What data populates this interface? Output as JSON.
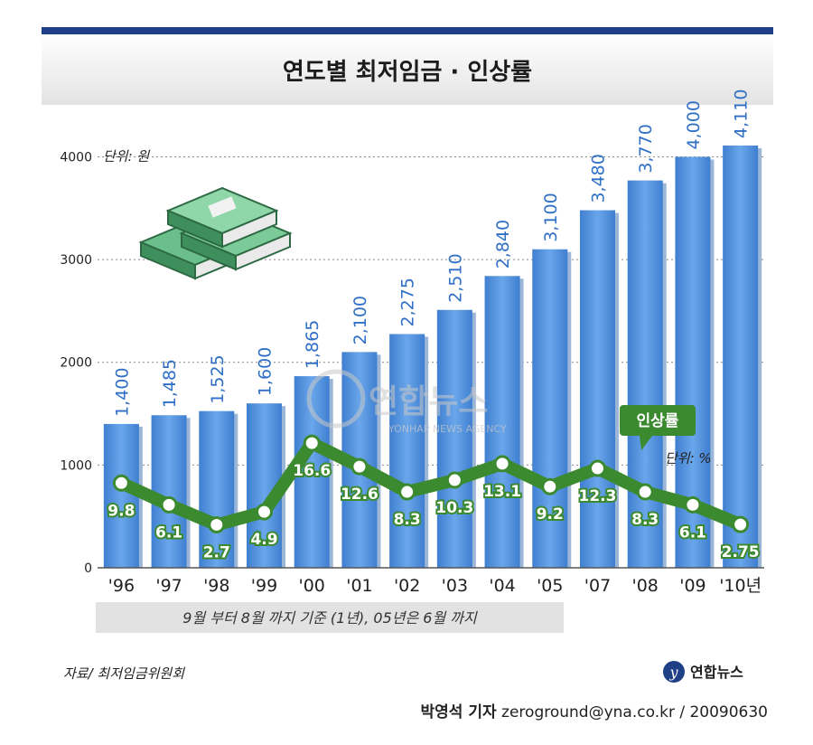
{
  "chart_data": {
    "type": "bar",
    "title": "연도별 최저임금 · 인상률",
    "unit_label": "단위: 원",
    "categories": [
      "'96",
      "'97",
      "'98",
      "'99",
      "'00",
      "'01",
      "'02",
      "'03",
      "'04",
      "'05",
      "'07",
      "'08",
      "'09",
      "'10년"
    ],
    "values": [
      1400,
      1485,
      1525,
      1600,
      1865,
      2100,
      2275,
      2510,
      2840,
      3100,
      3480,
      3770,
      4000,
      4110
    ],
    "value_labels": [
      "1,400",
      "1,485",
      "1,525",
      "1,600",
      "1,865",
      "2,100",
      "2,275",
      "2,510",
      "2,840",
      "3,100",
      "3,480",
      "3,770",
      "4,000",
      "4,110"
    ],
    "yticks": [
      "0",
      "1000",
      "2000",
      "3000",
      "4000"
    ],
    "ylim": [
      0,
      4400
    ],
    "grid": true,
    "series": [
      {
        "name": "인상률",
        "values": [
          9.8,
          6.1,
          2.7,
          4.9,
          16.6,
          12.6,
          8.3,
          10.3,
          13.1,
          9.2,
          12.3,
          8.3,
          6.1,
          2.75
        ],
        "labels": [
          "9.8",
          "6.1",
          "2.7",
          "4.9",
          "16.6",
          "12.6",
          "8.3",
          "10.3",
          "13.1",
          "9.2",
          "12.3",
          "8.3",
          "6.1",
          "2.75"
        ]
      }
    ],
    "series_unit": "단위: %",
    "legend_placement": "right",
    "colors": {
      "bar": "#4a8fdc",
      "line": "#3c8a2f",
      "title_bar": "#1f3f86"
    }
  },
  "note": "9월 부터 8월 까지 기준 (1년), 05년은 6월 까지",
  "source": "자료/ 최저임금위원회",
  "brand": "연합뉴스",
  "watermark": {
    "main": "연합뉴스",
    "sub": "YONHAP NEWS AGENCY"
  },
  "credit": {
    "author": "박영석 기자",
    "rest": " zeroground@yna.co.kr / 20090630"
  }
}
